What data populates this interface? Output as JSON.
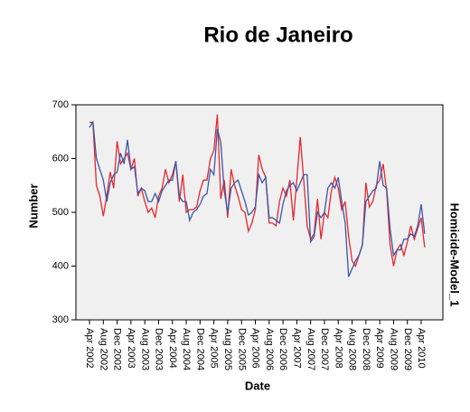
{
  "chart_data": {
    "type": "line",
    "title": "Rio de Janeiro",
    "x_label": "Date",
    "y_label": "Number",
    "panel_label": "Homicide-Model_1",
    "categories": [
      "Apr 2002",
      null,
      null,
      null,
      "Aug 2002",
      null,
      null,
      null,
      "Dec 2002",
      null,
      null,
      null,
      "Apr 2003",
      null,
      null,
      null,
      "Aug 2003",
      null,
      null,
      null,
      "Dec 2003",
      null,
      null,
      null,
      "Apr 2004",
      null,
      null,
      null,
      "Aug 2004",
      null,
      null,
      null,
      "Dec 2004",
      null,
      null,
      null,
      "Apr 2005",
      null,
      null,
      null,
      "Aug 2005",
      null,
      null,
      null,
      "Dec 2005",
      null,
      null,
      null,
      "Apr 2006",
      null,
      null,
      null,
      "Aug 2006",
      null,
      null,
      null,
      "Dec 2006",
      null,
      null,
      null,
      "Apr 2007",
      null,
      null,
      null,
      "Aug 2007",
      null,
      null,
      null,
      "Dec 2007",
      null,
      null,
      null,
      "Apr 2008",
      null,
      null,
      null,
      "Aug 2008",
      null,
      null,
      null,
      "Dec 2008",
      null,
      null,
      null,
      "Apr 2009",
      null,
      null,
      null,
      "Aug 2009",
      null,
      null,
      null,
      "Dec 2009",
      null,
      null,
      null,
      "Apr 2010",
      null
    ],
    "series": [
      {
        "color": "#e8262b",
        "values": [
          668,
          666,
          550,
          530,
          493,
          530,
          575,
          545,
          632,
          590,
          600,
          610,
          580,
          600,
          530,
          545,
          520,
          500,
          508,
          490,
          530,
          545,
          580,
          555,
          570,
          595,
          520,
          570,
          500,
          505,
          505,
          510,
          540,
          560,
          560,
          600,
          615,
          682,
          525,
          560,
          490,
          580,
          550,
          530,
          505,
          500,
          465,
          480,
          505,
          607,
          580,
          565,
          480,
          480,
          475,
          520,
          545,
          530,
          560,
          485,
          560,
          640,
          560,
          475,
          450,
          460,
          525,
          450,
          500,
          490,
          540,
          565,
          545,
          505,
          520,
          455,
          410,
          400,
          420,
          440,
          555,
          510,
          520,
          550,
          560,
          590,
          540,
          440,
          400,
          430,
          440,
          420,
          445,
          475,
          450,
          470,
          490,
          435
        ]
      },
      {
        "color": "#3a56a8",
        "values": [
          658,
          668,
          600,
          580,
          560,
          520,
          555,
          570,
          575,
          610,
          590,
          635,
          580,
          585,
          535,
          545,
          540,
          520,
          520,
          535,
          520,
          540,
          550,
          560,
          560,
          595,
          530,
          520,
          520,
          485,
          500,
          505,
          515,
          530,
          535,
          580,
          570,
          655,
          630,
          540,
          500,
          545,
          555,
          560,
          540,
          520,
          495,
          500,
          510,
          570,
          555,
          565,
          490,
          490,
          485,
          480,
          515,
          540,
          550,
          555,
          540,
          555,
          570,
          570,
          445,
          455,
          500,
          490,
          500,
          545,
          555,
          545,
          565,
          520,
          480,
          380,
          395,
          410,
          420,
          440,
          520,
          530,
          540,
          545,
          595,
          550,
          545,
          470,
          420,
          430,
          430,
          450,
          450,
          460,
          455,
          475,
          515,
          460
        ]
      }
    ],
    "ylim": [
      300,
      700
    ],
    "yticks": [
      300,
      400,
      500,
      600,
      700
    ]
  }
}
